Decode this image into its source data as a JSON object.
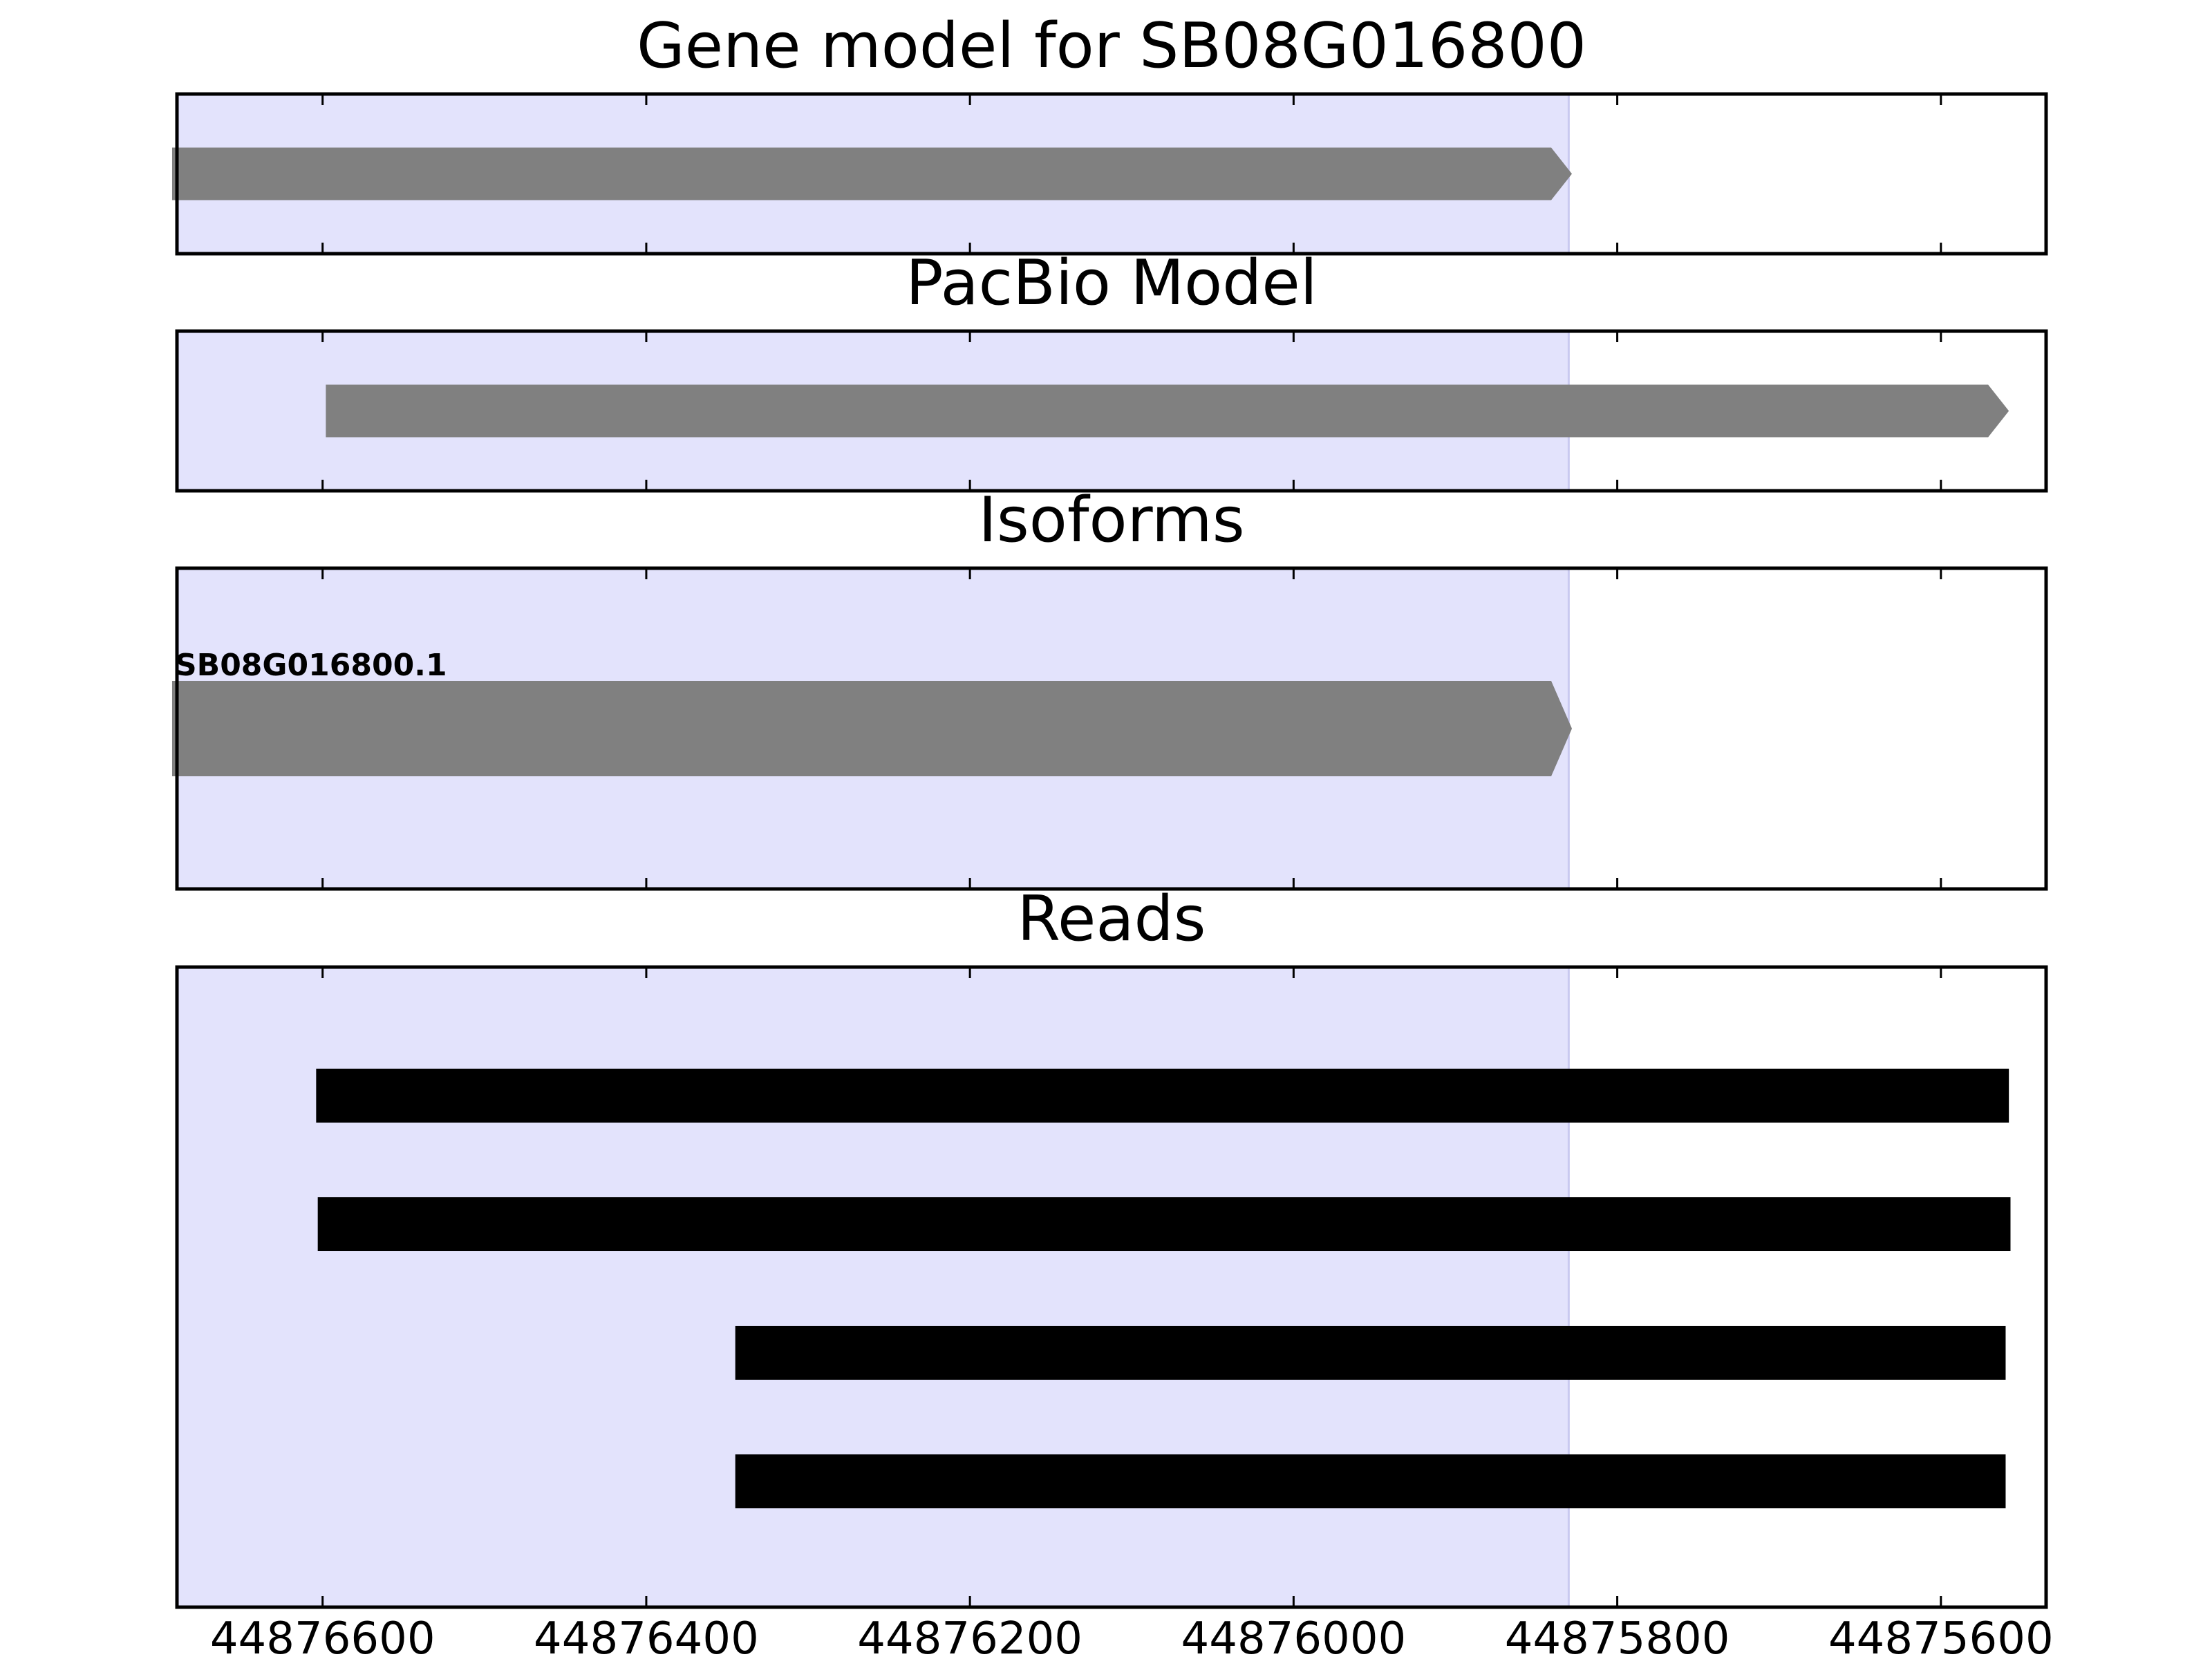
{
  "chart_data": {
    "type": "gene_track",
    "x_axis": {
      "lim": [
        44876690,
        44875535
      ],
      "direction": "reversed",
      "ticks": [
        44876600,
        44876400,
        44876200,
        44876000,
        44875800,
        44875600
      ],
      "tick_labels": [
        "44876600",
        "44876400",
        "44876200",
        "44876000",
        "44875800",
        "44875600"
      ]
    },
    "highlight_region": {
      "start": 44876690,
      "end": 44875830,
      "color": "#e3e3fc"
    },
    "panels": [
      {
        "id": "gene",
        "title": "Gene model for SB08G016800",
        "features": [
          {
            "start": 44876693,
            "end": 44875828,
            "color": "#808080",
            "arrow": true
          }
        ]
      },
      {
        "id": "pacbio",
        "title": "PacBio Model",
        "features": [
          {
            "start": 44876598,
            "end": 44875558,
            "color": "#808080",
            "arrow": true
          }
        ]
      },
      {
        "id": "isoforms",
        "title": "Isoforms",
        "features": [
          {
            "label": "SB08G016800.1",
            "start": 44876693,
            "end": 44875828,
            "color": "#808080",
            "arrow": true
          }
        ]
      },
      {
        "id": "reads",
        "title": "Reads",
        "features": [
          {
            "start": 44876604,
            "end": 44875558,
            "color": "#000000"
          },
          {
            "start": 44876603,
            "end": 44875557,
            "color": "#000000"
          },
          {
            "start": 44876345,
            "end": 44875560,
            "color": "#000000"
          },
          {
            "start": 44876345,
            "end": 44875560,
            "color": "#000000"
          }
        ]
      }
    ]
  }
}
